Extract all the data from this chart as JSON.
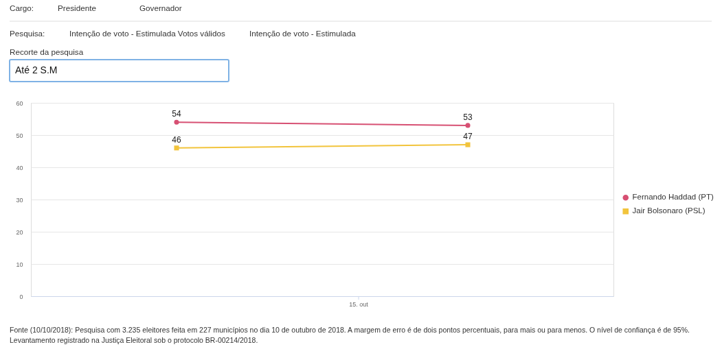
{
  "chart_data": {
    "type": "line",
    "categories": [
      null,
      null
    ],
    "series": [
      {
        "name": "Fernando Haddad (PT)",
        "color": "#d75073",
        "values": [
          54,
          53
        ],
        "marker": "circle"
      },
      {
        "name": "Jair Bolsonaro (PSL)",
        "color": "#f2c43c",
        "values": [
          46,
          47
        ],
        "marker": "square"
      }
    ],
    "ylim": [
      0,
      60
    ],
    "yticks": [
      0,
      10,
      20,
      30,
      40,
      50,
      60
    ],
    "grid": "y",
    "legend": "right",
    "data_labels": true,
    "line_style": "solid",
    "annotations": [
      "Cargo:",
      "Presidente",
      "Governador",
      "Pesquisa:",
      "Intenção de voto - Estimulada Votos válidos",
      "Intenção de voto - Estimulada",
      "Recorte da pesquisa",
      "Até 2 S.M",
      "15. out",
      "Fonte (10/10/2018): Pesquisa com 3.235 eleitores feita em 227 municípios no dia 10 de outubro de 2018. A margem de erro é de dois pontos percentuais, para mais ou para menos. O nível de confiança é de 95%. Levantamento registrado na Justiça Eleitoral sob o protocolo BR-00214/2018."
    ]
  }
}
